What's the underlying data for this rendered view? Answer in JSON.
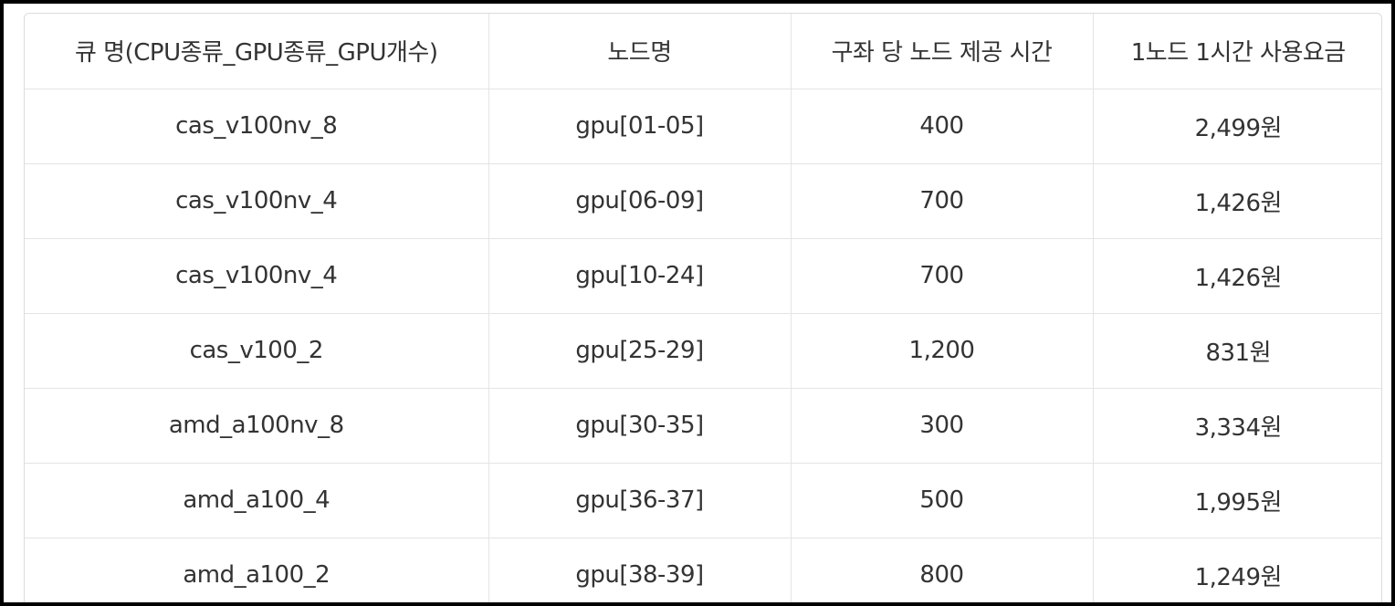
{
  "table": {
    "headers": [
      "큐 명(CPU종류_GPU종류_GPU개수)",
      "노드명",
      "구좌 당 노드 제공 시간",
      "1노드 1시간 사용요금"
    ],
    "rows": [
      [
        "cas_v100nv_8",
        "gpu[01-05]",
        "400",
        "2,499원"
      ],
      [
        "cas_v100nv_4",
        "gpu[06-09]",
        "700",
        "1,426원"
      ],
      [
        "cas_v100nv_4",
        "gpu[10-24]",
        "700",
        "1,426원"
      ],
      [
        "cas_v100_2",
        "gpu[25-29]",
        "1,200",
        "831원"
      ],
      [
        "amd_a100nv_8",
        "gpu[30-35]",
        "300",
        "3,334원"
      ],
      [
        "amd_a100_4",
        "gpu[36-37]",
        "500",
        "1,995원"
      ],
      [
        "amd_a100_2",
        "gpu[38-39]",
        "800",
        "1,249원"
      ]
    ]
  }
}
